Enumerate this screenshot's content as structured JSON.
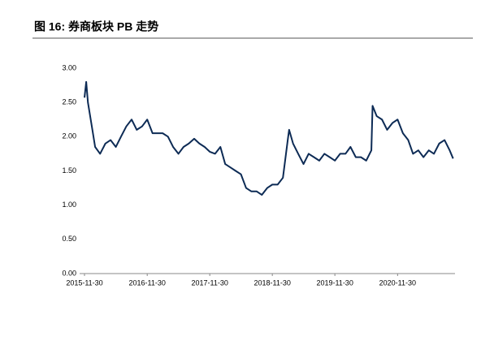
{
  "chart_data": {
    "type": "line",
    "title": "图 16: 券商板块 PB 走势",
    "x": [
      "2015-11-30",
      "2015-12-10",
      "2015-12-20",
      "2016-01-15",
      "2016-01-31",
      "2016-02-29",
      "2016-03-31",
      "2016-04-30",
      "2016-05-31",
      "2016-06-30",
      "2016-07-31",
      "2016-08-31",
      "2016-09-30",
      "2016-10-31",
      "2016-11-30",
      "2016-12-31",
      "2017-01-31",
      "2017-02-28",
      "2017-03-31",
      "2017-04-30",
      "2017-05-31",
      "2017-06-30",
      "2017-07-31",
      "2017-08-31",
      "2017-09-30",
      "2017-10-31",
      "2017-11-30",
      "2017-12-31",
      "2018-01-31",
      "2018-02-28",
      "2018-03-31",
      "2018-04-30",
      "2018-05-31",
      "2018-06-30",
      "2018-07-31",
      "2018-08-31",
      "2018-09-30",
      "2018-10-31",
      "2018-11-30",
      "2018-12-31",
      "2019-01-31",
      "2019-02-28",
      "2019-03-08",
      "2019-03-31",
      "2019-04-30",
      "2019-05-31",
      "2019-06-30",
      "2019-07-31",
      "2019-08-31",
      "2019-09-30",
      "2019-10-31",
      "2019-11-30",
      "2019-12-31",
      "2020-01-31",
      "2020-02-29",
      "2020-03-31",
      "2020-04-30",
      "2020-05-31",
      "2020-06-30",
      "2020-07-07",
      "2020-07-31",
      "2020-08-31",
      "2020-09-30",
      "2020-10-31",
      "2020-11-30",
      "2020-12-31",
      "2021-01-31",
      "2021-02-28",
      "2021-03-31",
      "2021-04-30",
      "2021-05-31",
      "2021-06-30",
      "2021-07-31",
      "2021-08-31",
      "2021-09-30",
      "2021-10-20"
    ],
    "series": [
      {
        "color": "#0d2b55",
        "values": [
          2.57,
          2.8,
          2.5,
          2.1,
          1.85,
          1.75,
          1.9,
          1.95,
          1.85,
          2.0,
          2.15,
          2.25,
          2.1,
          2.15,
          2.25,
          2.05,
          2.05,
          2.05,
          2.0,
          1.85,
          1.75,
          1.85,
          1.9,
          1.97,
          1.9,
          1.85,
          1.78,
          1.75,
          1.85,
          1.6,
          1.55,
          1.5,
          1.45,
          1.25,
          1.2,
          1.2,
          1.15,
          1.25,
          1.3,
          1.3,
          1.4,
          1.95,
          2.1,
          1.9,
          1.75,
          1.6,
          1.75,
          1.7,
          1.65,
          1.75,
          1.7,
          1.65,
          1.75,
          1.75,
          1.85,
          1.7,
          1.7,
          1.65,
          1.8,
          2.45,
          2.3,
          2.25,
          2.1,
          2.2,
          2.25,
          2.05,
          1.95,
          1.75,
          1.8,
          1.7,
          1.8,
          1.75,
          1.9,
          1.95,
          1.8,
          1.68
        ]
      }
    ],
    "xlim": [
      "2015-11-30",
      "2021-10-31"
    ],
    "xticks": [
      "2015-11-30",
      "2016-11-30",
      "2017-11-30",
      "2018-11-30",
      "2019-11-30",
      "2020-11-30"
    ],
    "ylim": [
      0,
      3
    ],
    "yticks": [
      {
        "value": 0,
        "label": "0.00"
      },
      {
        "value": 0.5,
        "label": "0.50"
      },
      {
        "value": 1,
        "label": "1.00"
      },
      {
        "value": 1.5,
        "label": "1.50"
      },
      {
        "value": 2,
        "label": "2.00"
      },
      {
        "value": 2.5,
        "label": "2.50"
      },
      {
        "value": 3,
        "label": "3.00"
      }
    ]
  }
}
